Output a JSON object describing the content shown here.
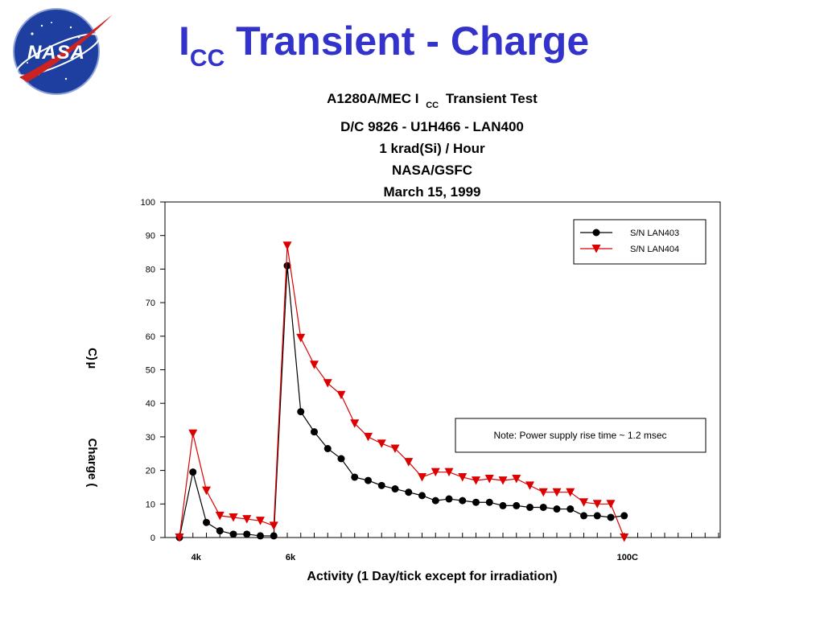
{
  "slide": {
    "title_main": "I",
    "title_sub": "CC",
    "title_rest": " Transient - Charge"
  },
  "colors": {
    "title": "#3333cc",
    "series_1": "#000000",
    "series_2": "#dd0000"
  },
  "chart_data": {
    "type": "line",
    "title_lines": [
      "A1280A/MEC I",
      "CC",
      "Transient Test",
      "D/C 9826 - U1H466 - LAN400",
      "1 krad(Si) / Hour",
      "NASA/GSFC",
      "March 15, 1999"
    ],
    "xlabel": "Activity (1 Day/tick except for irradiation)",
    "ylabel_parts": [
      "Charge (",
      "C)"
    ],
    "ylabel_unit": "µ",
    "x_tick_labels": [
      {
        "x": 2,
        "label": "4k"
      },
      {
        "x": 9,
        "label": "6k"
      },
      {
        "x": 34,
        "label": "100C"
      }
    ],
    "xlim": [
      1,
      41
    ],
    "ylim": [
      0,
      100
    ],
    "yticks": [
      0,
      10,
      20,
      30,
      40,
      50,
      60,
      70,
      80,
      90,
      100
    ],
    "grid": false,
    "legend_position": "top-right",
    "annotation": "Note: Power supply rise time ~ 1.2 msec",
    "series": [
      {
        "name": "S/N LAN403",
        "marker": "circle",
        "x": [
          1,
          2,
          3,
          4,
          5,
          6,
          7,
          8,
          9,
          10,
          11,
          12,
          13,
          14,
          15,
          16,
          17,
          18,
          19,
          20,
          21,
          22,
          23,
          24,
          25,
          26,
          27,
          28,
          29,
          30,
          31,
          32,
          33,
          34
        ],
        "values": [
          0,
          19.5,
          4.5,
          2,
          1,
          1,
          0.5,
          0.5,
          81,
          37.5,
          31.5,
          26.5,
          23.5,
          18,
          17,
          15.5,
          14.5,
          13.5,
          12.5,
          11,
          11.5,
          11,
          10.5,
          10.5,
          9.5,
          9.5,
          9,
          9,
          8.5,
          8.5,
          6.5,
          6.5,
          6,
          6.5
        ]
      },
      {
        "name": "S/N LAN404",
        "marker": "triangle-down",
        "x": [
          1,
          2,
          3,
          4,
          5,
          6,
          7,
          8,
          9,
          10,
          11,
          12,
          13,
          14,
          15,
          16,
          17,
          18,
          19,
          20,
          21,
          22,
          23,
          24,
          25,
          26,
          27,
          28,
          29,
          30,
          31,
          32,
          33,
          34
        ],
        "values": [
          0,
          31,
          14,
          6.5,
          6,
          5.5,
          5,
          3.5,
          87,
          59.5,
          51.5,
          46,
          42.5,
          34,
          30,
          28,
          26.5,
          22.5,
          18,
          19.5,
          19.5,
          18,
          17,
          17.5,
          17,
          17.5,
          15.5,
          13.5,
          13.5,
          13.5,
          10.5,
          10,
          10,
          0
        ]
      }
    ]
  }
}
